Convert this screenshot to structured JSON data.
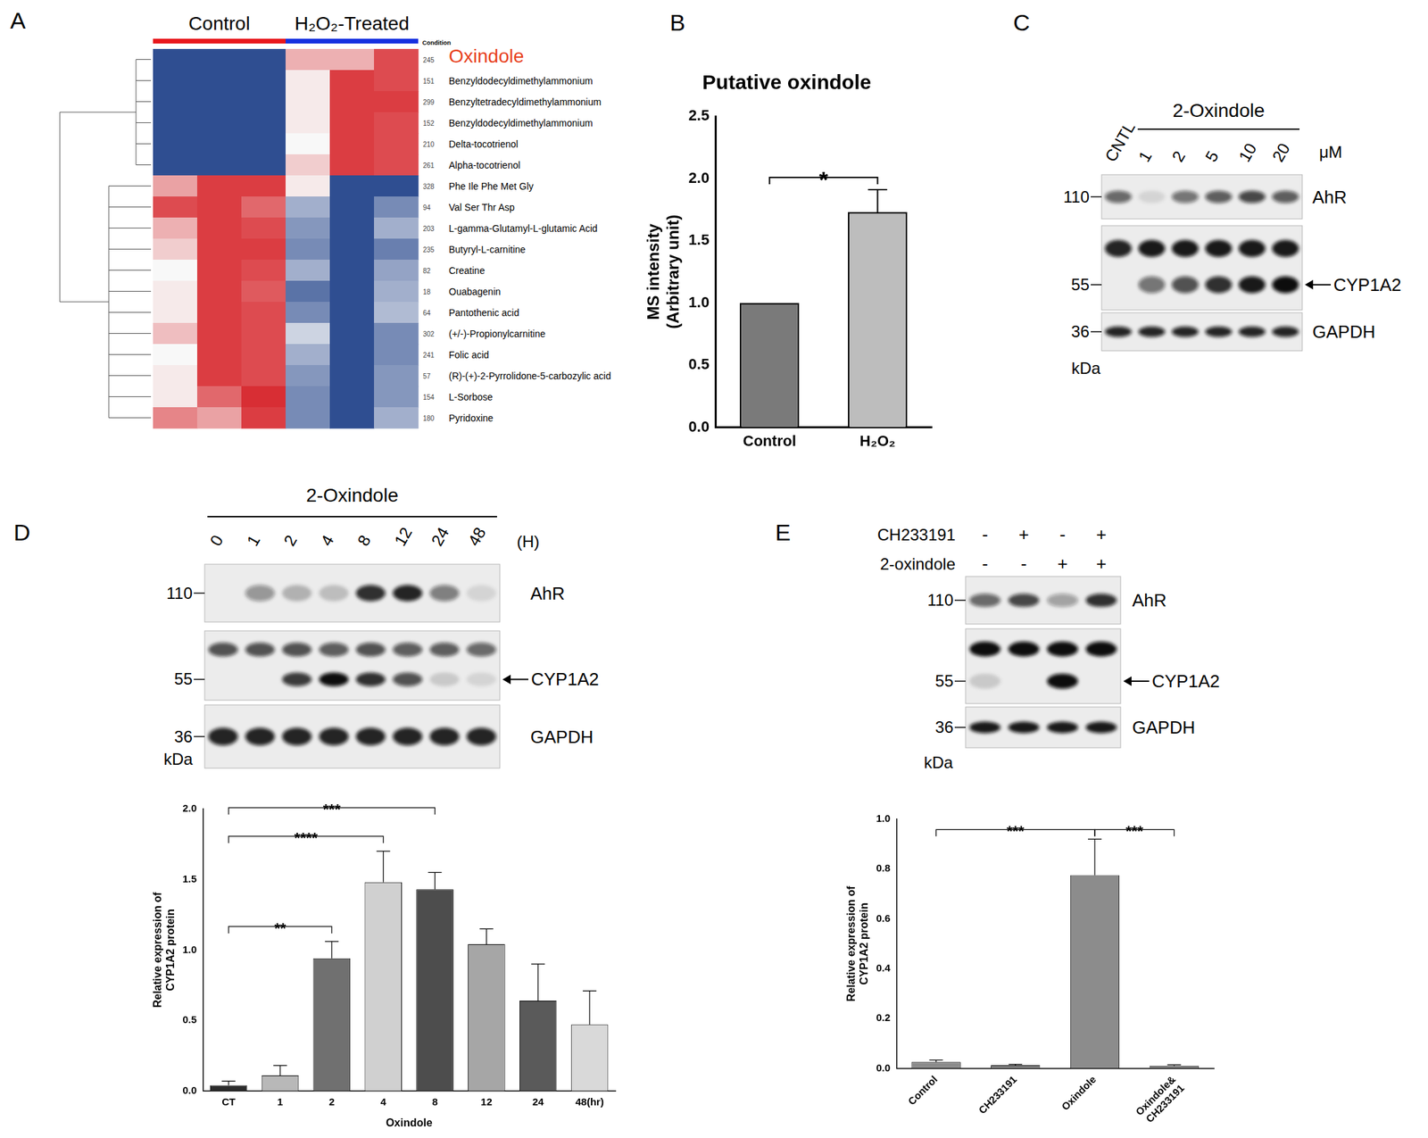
{
  "chart_data": [
    {
      "type": "bar",
      "panel": "B",
      "title": "Putative oxindole",
      "ylabel": [
        "MS intensity",
        "(Arbitrary unit)"
      ],
      "categories": [
        "Control",
        "H₂O₂"
      ],
      "values": [
        1.0,
        1.73
      ],
      "errors": [
        0,
        0.18
      ],
      "colors": [
        "#7a7a7a",
        "#bdbdbd"
      ],
      "ylim": [
        0,
        2.5
      ],
      "yticks": [
        {
          "value": 0,
          "label": "0.0"
        },
        0.5,
        {
          "value": 1,
          "label": "1.0"
        },
        1.5,
        {
          "value": 2,
          "label": "2.0"
        },
        2.5
      ],
      "grid": false,
      "significance": [
        {
          "between": [
            "Control",
            "H₂O₂"
          ],
          "label": "*"
        }
      ]
    },
    {
      "type": "bar",
      "ylabel": [
        "Relative expression of",
        "CYP1A2 protein"
      ],
      "xlabel": "Oxindole",
      "categories": [
        "CT",
        "1",
        "2",
        "4",
        "8",
        "12",
        "24",
        "48(hr)"
      ],
      "values": [
        0.04,
        0.11,
        0.94,
        1.48,
        1.43,
        1.04,
        0.64,
        0.47
      ],
      "errors": [
        0.03,
        0.07,
        0.12,
        0.22,
        0.12,
        0.11,
        0.26,
        0.24
      ],
      "colors": [
        "#2b2b2b",
        "#b8b8b8",
        "#707070",
        "#d0d0d0",
        "#4d4d4d",
        "#a6a6a6",
        "#5a5a5a",
        "#d9d9d9"
      ],
      "ylim": [
        0,
        2
      ],
      "yticks": [
        {
          "value": 0,
          "label": "0.0"
        },
        0.5,
        {
          "value": 1,
          "label": "1.0"
        },
        1.5,
        {
          "value": 2,
          "label": "2.0"
        }
      ],
      "grid": false,
      "significance": [
        {
          "between": [
            "CT",
            "2"
          ],
          "label": "**"
        },
        {
          "between": [
            "CT",
            "4"
          ],
          "label": "****"
        },
        {
          "between": [
            "CT",
            "8"
          ],
          "label": "***"
        }
      ]
    },
    {
      "type": "bar",
      "ylabel": [
        "Relative expression of",
        "CYP1A2 protein"
      ],
      "categories": [
        "Control",
        "CH233191",
        "Oxindole",
        "Oxindole&\nCH233191"
      ],
      "values": [
        0.025,
        0.012,
        0.775,
        0.01
      ],
      "errors": [
        0.008,
        0.004,
        0.145,
        0.004
      ],
      "colors": [
        "#8c8c8c",
        "#8c8c8c",
        "#8c8c8c",
        "#8c8c8c"
      ],
      "ylim": [
        0,
        1
      ],
      "yticks": [
        {
          "value": 0,
          "label": "0.0"
        },
        0.2,
        0.4,
        0.6,
        0.8,
        {
          "value": 1,
          "label": "1.0"
        }
      ],
      "grid": false,
      "significance": [
        {
          "between": [
            "Control",
            "Oxindole"
          ],
          "label": "***"
        },
        {
          "between": [
            "Oxindole",
            "Oxindole&\nCH233191"
          ],
          "label": "***"
        }
      ]
    }
  ],
  "heatmap": {
    "panel": "A",
    "groups": [
      {
        "name": "Control",
        "color": "#e8161b",
        "columns": 3
      },
      {
        "name": "H₂O₂-Treated",
        "color": "#1530e0",
        "columns": 3
      }
    ],
    "condition_label": "Condition",
    "zlim": [
      -1.5,
      1.5
    ],
    "row_clusters": [
      6,
      12
    ],
    "rows": [
      {
        "id": 245,
        "name": "Oxindole",
        "color": "#e8401c",
        "values": [
          -1.4,
          -1.4,
          -1.4,
          0.5,
          0.5,
          1.2
        ]
      },
      {
        "id": 151,
        "name": "Benzyldodecyldimethylammonium",
        "values": [
          -1.4,
          -1.4,
          -1.4,
          0.1,
          1.3,
          1.2
        ]
      },
      {
        "id": 299,
        "name": "Benzyltetradecyldimethylammonium",
        "values": [
          -1.4,
          -1.4,
          -1.4,
          0.1,
          1.3,
          1.3
        ]
      },
      {
        "id": 152,
        "name": "Benzyldodecyldimethylammonium",
        "values": [
          -1.4,
          -1.4,
          -1.4,
          0.1,
          1.3,
          1.2
        ]
      },
      {
        "id": 210,
        "name": "Delta-tocotrienol",
        "values": [
          -1.4,
          -1.4,
          -1.4,
          0.0,
          1.3,
          1.2
        ]
      },
      {
        "id": 261,
        "name": "Alpha-tocotrienol",
        "values": [
          -1.4,
          -1.4,
          -1.4,
          0.3,
          1.3,
          1.2
        ]
      },
      {
        "id": 328,
        "name": "Phe Ile Phe Met Gly",
        "values": [
          0.6,
          1.3,
          1.3,
          0.1,
          -1.4,
          -1.4
        ]
      },
      {
        "id": 94,
        "name": "Val Ser Thr Asp",
        "values": [
          1.2,
          1.3,
          1.0,
          -0.6,
          -1.4,
          -0.9
        ]
      },
      {
        "id": 203,
        "name": "L-gamma-Glutamyl-L-glutamic  Acid",
        "values": [
          0.5,
          1.3,
          1.2,
          -0.8,
          -1.4,
          -0.6
        ]
      },
      {
        "id": 235,
        "name": "Butyryl-L-carnitine",
        "values": [
          0.3,
          1.3,
          1.3,
          -0.9,
          -1.4,
          -1.0
        ]
      },
      {
        "id": 82,
        "name": "Creatine",
        "values": [
          0.0,
          1.3,
          1.2,
          -0.6,
          -1.4,
          -0.7
        ]
      },
      {
        "id": 18,
        "name": "Ouabagenin",
        "values": [
          0.1,
          1.3,
          1.1,
          -1.1,
          -1.4,
          -0.6
        ]
      },
      {
        "id": 64,
        "name": "Pantothenic acid",
        "values": [
          0.1,
          1.3,
          1.2,
          -0.9,
          -1.4,
          -0.5
        ]
      },
      {
        "id": 302,
        "name": "(+/-)-Propionylcarnitine",
        "values": [
          0.4,
          1.3,
          1.2,
          -0.3,
          -1.4,
          -0.9
        ]
      },
      {
        "id": 241,
        "name": "Folic acid",
        "values": [
          0.0,
          1.3,
          1.2,
          -0.6,
          -1.4,
          -0.9
        ]
      },
      {
        "id": 57,
        "name": "(R)-(+)-2-Pyrrolidone-5-carbozylic  acid",
        "values": [
          0.1,
          1.3,
          1.2,
          -0.8,
          -1.4,
          -0.8
        ]
      },
      {
        "id": 154,
        "name": "L-Sorbose",
        "values": [
          0.1,
          1.0,
          1.4,
          -0.9,
          -1.4,
          -0.8
        ]
      },
      {
        "id": 180,
        "name": "Pyridoxine",
        "values": [
          0.8,
          0.6,
          1.3,
          -0.9,
          -1.4,
          -0.6
        ]
      }
    ]
  },
  "blots": [
    {
      "panel": "C",
      "control_lane": "CNTL",
      "header": "2-Oxindole",
      "unit": "μM",
      "lanes": [
        "1",
        "2",
        "5",
        "10",
        "20"
      ],
      "strips": [
        {
          "label": "AhR",
          "bands": [
            [
              0.6,
              0.1,
              0.55,
              0.65,
              0.75,
              0.65
            ]
          ]
        },
        {
          "label": "CYP1A2",
          "arrow": true,
          "bands": [
            [
              0.9,
              0.95,
              0.95,
              0.95,
              0.95,
              0.95
            ],
            [
              0,
              0.55,
              0.7,
              0.85,
              0.95,
              1.0
            ]
          ]
        },
        {
          "label": "GAPDH",
          "bands": [
            [
              0.9,
              0.9,
              0.9,
              0.9,
              0.9,
              0.9
            ]
          ]
        }
      ],
      "markers": [
        110,
        55,
        36
      ],
      "marker_unit": "kDa"
    },
    {
      "panel": "D",
      "header": "2-Oxindole",
      "unit": "(H)",
      "lanes": [
        "0",
        "1",
        "2",
        "4",
        "8",
        "12",
        "24",
        "48"
      ],
      "strips": [
        {
          "label": "AhR",
          "bands": [
            [
              0,
              0.4,
              0.25,
              0.2,
              0.85,
              0.9,
              0.5,
              0.1
            ]
          ]
        },
        {
          "label": "CYP1A2",
          "arrow": true,
          "bands": [
            [
              0.7,
              0.7,
              0.7,
              0.65,
              0.7,
              0.65,
              0.65,
              0.6
            ],
            [
              0,
              0,
              0.8,
              1.0,
              0.85,
              0.7,
              0.15,
              0.1
            ]
          ]
        },
        {
          "label": "GAPDH",
          "bands": [
            [
              0.9,
              0.9,
              0.9,
              0.9,
              0.9,
              0.9,
              0.9,
              0.9
            ]
          ]
        }
      ],
      "markers": [
        110,
        55,
        36
      ],
      "marker_unit": "kDa"
    },
    {
      "panel": "E",
      "treatments": [
        {
          "name": "CH233191",
          "signs": [
            "-",
            "+",
            "-",
            "+"
          ]
        },
        {
          "name": "2-oxindole",
          "signs": [
            "-",
            "-",
            "+",
            "+"
          ]
        }
      ],
      "strips": [
        {
          "label": "AhR",
          "bands": [
            [
              0.6,
              0.75,
              0.35,
              0.85
            ]
          ]
        },
        {
          "label": "CYP1A2",
          "arrow": true,
          "bands": [
            [
              1.0,
              1.0,
              1.0,
              1.0
            ],
            [
              0.15,
              0,
              1.0,
              0
            ]
          ]
        },
        {
          "label": "GAPDH",
          "bands": [
            [
              0.95,
              0.95,
              0.95,
              0.95
            ]
          ]
        }
      ],
      "markers": [
        110,
        55,
        36
      ],
      "marker_unit": "kDa"
    }
  ]
}
